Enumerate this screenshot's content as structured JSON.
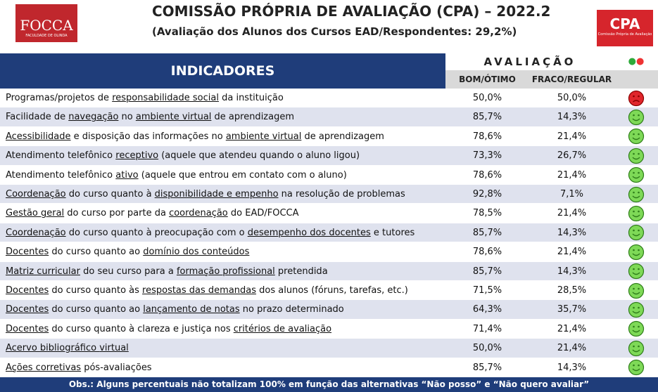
{
  "header": {
    "title": "COMISSÃO PRÓPRIA DE AVALIAÇÃO (CPA) – 2022.2",
    "subtitle": "(Avaliação dos Alunos dos Cursos EAD/Respondentes: 29,2%)",
    "logo_left": "FOCCA",
    "logo_left_sub": "FACULDADE DE OLINDA",
    "logo_right": "CPA",
    "logo_right_sub": "Comissão Própria de Avaliação"
  },
  "table": {
    "indicator_header": "INDICADORES",
    "group_header": "AVALIAÇÃO",
    "columns": [
      "BOM/ÓTIMO",
      "FRACO/REGULAR"
    ],
    "rows": [
      {
        "indicator": [
          "Programas/projetos de ",
          "responsabilidade social",
          " da instituição"
        ],
        "values": [
          "50,0%",
          "50,0%"
        ]
      },
      {
        "indicator": [
          "Facilidade de ",
          "navegação",
          " no ",
          "ambiente virtual",
          " de aprendizagem"
        ],
        "values": [
          "85,7%",
          "14,3%"
        ]
      },
      {
        "indicator": [
          "",
          "Acessibilidade",
          " e disposição das informações no ",
          "ambiente virtual",
          " de aprendizagem"
        ],
        "values": [
          "78,6%",
          "21,4%"
        ]
      },
      {
        "indicator": [
          "Atendimento telefônico ",
          "receptivo",
          " (aquele que atendeu quando o aluno ligou)"
        ],
        "values": [
          "73,3%",
          "26,7%"
        ]
      },
      {
        "indicator": [
          "Atendimento telefônico ",
          "ativo",
          " (aquele que entrou em contato com o aluno)"
        ],
        "values": [
          "78,6%",
          "21,4%"
        ]
      },
      {
        "indicator": [
          "",
          "Coordenação",
          " do curso quanto à ",
          "disponibilidade e empenho",
          " na resolução de problemas"
        ],
        "values": [
          "92,8%",
          "7,1%"
        ]
      },
      {
        "indicator": [
          "",
          "Gestão geral",
          " do curso por parte da ",
          "coordenação",
          " do EAD/FOCCA"
        ],
        "values": [
          "78,5%",
          "21,4%"
        ]
      },
      {
        "indicator": [
          "",
          "Coordenação",
          " do curso quanto à preocupação com o ",
          "desempenho dos docentes",
          " e tutores"
        ],
        "values": [
          "85,7%",
          "14,3%"
        ]
      },
      {
        "indicator": [
          "",
          "Docentes",
          " do curso quanto ao ",
          "domínio dos conteúdos"
        ],
        "values": [
          "78,6%",
          "21,4%"
        ]
      },
      {
        "indicator": [
          "",
          "Matriz curricular",
          " do seu curso para a ",
          "formação profissional",
          " pretendida"
        ],
        "values": [
          "85,7%",
          "14,3%"
        ]
      },
      {
        "indicator": [
          "",
          "Docentes",
          " do curso quanto às ",
          "respostas das demandas",
          " dos alunos (fóruns, tarefas, etc.)"
        ],
        "values": [
          "71,5%",
          "28,5%"
        ]
      },
      {
        "indicator": [
          "",
          "Docentes",
          " do curso quanto ao ",
          "lançamento de notas",
          " no prazo determinado"
        ],
        "values": [
          "64,3%",
          "35,7%"
        ]
      },
      {
        "indicator": [
          "",
          "Docentes",
          " do curso quanto à clareza e justiça nos ",
          "critérios de avaliação"
        ],
        "values": [
          "71,4%",
          "21,4%"
        ]
      },
      {
        "indicator": [
          "",
          "Acervo bibliográfico ",
          "",
          "virtual"
        ],
        "values": [
          "50,0%",
          "21,4%"
        ]
      },
      {
        "indicator": [
          "",
          "Ações corretivas",
          " pós-avaliações"
        ],
        "values": [
          "85,7%",
          "14,3%"
        ]
      }
    ]
  },
  "footer": "Obs.: Alguns percentuais não totalizam 100% em função das alternativas “Não posso” e “Não quero avaliar”"
}
